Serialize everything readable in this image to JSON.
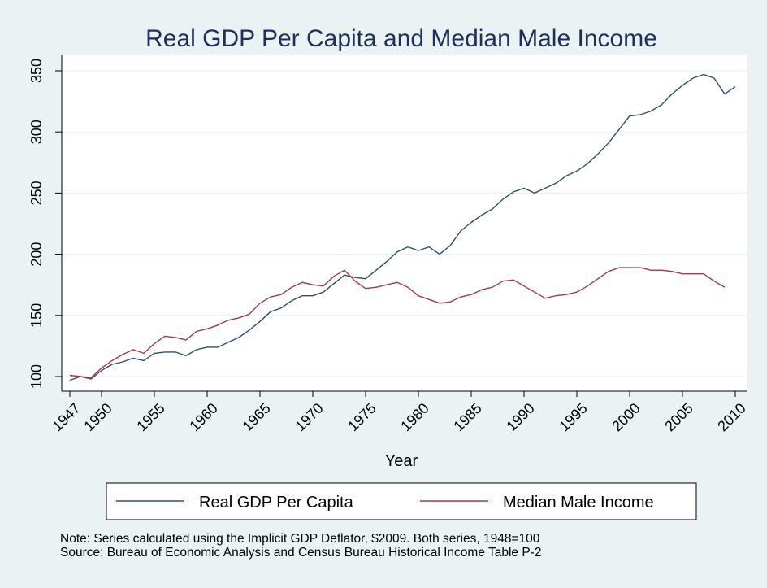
{
  "chart_data": {
    "type": "line",
    "title": "Real GDP Per Capita and Median Male Income",
    "xlabel": "Year",
    "ylabel": "",
    "xlim": [
      1947,
      2010
    ],
    "ylim": [
      92,
      357
    ],
    "x_ticks": [
      1947,
      1950,
      1955,
      1960,
      1965,
      1970,
      1975,
      1980,
      1985,
      1990,
      1995,
      2000,
      2005,
      2010
    ],
    "y_ticks": [
      100,
      150,
      200,
      250,
      300,
      350
    ],
    "grid": true,
    "legend_position": "bottom",
    "series": [
      {
        "name": "Real GDP Per Capita",
        "color": "#2c4f6e",
        "x": [
          1947,
          1948,
          1949,
          1950,
          1951,
          1952,
          1953,
          1954,
          1955,
          1956,
          1957,
          1958,
          1959,
          1960,
          1961,
          1962,
          1963,
          1964,
          1965,
          1966,
          1967,
          1968,
          1969,
          1970,
          1971,
          1972,
          1973,
          1974,
          1975,
          1976,
          1977,
          1978,
          1979,
          1980,
          1981,
          1982,
          1983,
          1984,
          1985,
          1986,
          1987,
          1988,
          1989,
          1990,
          1991,
          1992,
          1993,
          1994,
          1995,
          1996,
          1997,
          1998,
          1999,
          2000,
          2001,
          2002,
          2003,
          2004,
          2005,
          2006,
          2007,
          2008,
          2009,
          2010
        ],
        "values": [
          97,
          100,
          98,
          105,
          110,
          112,
          115,
          113,
          119,
          120,
          120,
          117,
          122,
          124,
          124,
          128,
          132,
          138,
          145,
          153,
          156,
          162,
          166,
          166,
          169,
          176,
          183,
          181,
          180,
          187,
          194,
          202,
          206,
          203,
          206,
          200,
          207,
          219,
          226,
          232,
          237,
          245,
          251,
          254,
          250,
          254,
          258,
          264,
          268,
          274,
          282,
          291,
          302,
          313,
          314,
          317,
          322,
          331,
          338,
          344,
          347,
          344,
          331,
          337
        ]
      },
      {
        "name": "Median Male Income",
        "color": "#9c3b4a",
        "x": [
          1947,
          1948,
          1949,
          1950,
          1951,
          1952,
          1953,
          1954,
          1955,
          1956,
          1957,
          1958,
          1959,
          1960,
          1961,
          1962,
          1963,
          1964,
          1965,
          1966,
          1967,
          1968,
          1969,
          1970,
          1971,
          1972,
          1973,
          1974,
          1975,
          1976,
          1977,
          1978,
          1979,
          1980,
          1981,
          1982,
          1983,
          1984,
          1985,
          1986,
          1987,
          1988,
          1989,
          1990,
          1991,
          1992,
          1993,
          1994,
          1995,
          1996,
          1997,
          1998,
          1999,
          2000,
          2001,
          2002,
          2003,
          2004,
          2005,
          2006,
          2007,
          2008,
          2009
        ],
        "values": [
          101,
          100,
          99,
          107,
          113,
          118,
          122,
          119,
          127,
          133,
          132,
          130,
          137,
          139,
          142,
          146,
          148,
          151,
          160,
          165,
          167,
          173,
          177,
          175,
          174,
          182,
          187,
          178,
          172,
          173,
          175,
          177,
          173,
          166,
          163,
          160,
          161,
          165,
          167,
          171,
          173,
          178,
          179,
          174,
          169,
          164,
          166,
          167,
          169,
          174,
          180,
          186,
          189,
          189,
          189,
          187,
          187,
          186,
          184,
          184,
          184,
          178,
          173
        ]
      }
    ],
    "notes": [
      "Note: Series calculated using the Implicit GDP Deflator, $2009. Both series, 1948=100",
      "Source: Bureau of Economic Analysis and Census Bureau Historical Income Table P-2"
    ]
  }
}
